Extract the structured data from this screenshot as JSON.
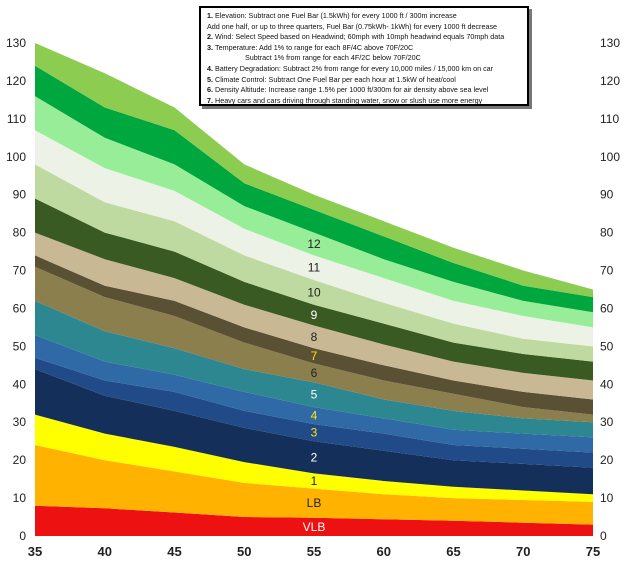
{
  "chart_data": {
    "type": "area",
    "title": "",
    "xlabel": "",
    "ylabel": "",
    "x": [
      35,
      40,
      45,
      50,
      55,
      60,
      65,
      70,
      75
    ],
    "xlim": [
      35,
      75
    ],
    "ylim": [
      0,
      130
    ],
    "x_ticks": [
      "35",
      "40",
      "45",
      "50",
      "55",
      "60",
      "65",
      "70",
      "75"
    ],
    "y_ticks": [
      "0",
      "10",
      "20",
      "30",
      "40",
      "50",
      "60",
      "70",
      "80",
      "90",
      "100",
      "110",
      "120",
      "130"
    ],
    "y_axis_both_sides": true,
    "bands": [
      {
        "name": "VLB",
        "color": "#ee1111",
        "label_color": "#ffffff",
        "upper": [
          8,
          7.3,
          6.2,
          5,
          4.8,
          4.4,
          4,
          3.5,
          3
        ]
      },
      {
        "name": "LB",
        "color": "#ffb300",
        "label_color": "#222222",
        "upper": [
          24,
          20,
          17,
          14,
          12.5,
          11,
          10,
          9.5,
          9
        ]
      },
      {
        "name": "1",
        "color": "#ffff00",
        "label_color": "#222222",
        "upper": [
          32,
          27,
          23.5,
          19.5,
          16.5,
          14.5,
          13,
          12,
          11
        ]
      },
      {
        "name": "2",
        "color": "#14305a",
        "label_color": "#ffffff",
        "upper": [
          44,
          37,
          33,
          28.5,
          25,
          22.5,
          20,
          19,
          18
        ]
      },
      {
        "name": "3",
        "color": "#204a88",
        "label_color": "#ffe800",
        "upper": [
          47,
          41,
          38,
          33,
          29.5,
          27,
          24,
          23,
          22
        ]
      },
      {
        "name": "4",
        "color": "#2f6aa6",
        "label_color": "#ffe800",
        "upper": [
          53,
          46,
          42.5,
          38,
          34,
          31,
          28,
          27,
          26
        ]
      },
      {
        "name": "5",
        "color": "#2c8790",
        "label_color": "#ffffff",
        "upper": [
          62,
          54,
          49.5,
          44,
          40.5,
          36,
          33,
          31,
          30
        ]
      },
      {
        "name": "6",
        "color": "#8b7f4e",
        "label_color": "#222222",
        "upper": [
          71,
          63,
          58,
          51,
          45.5,
          41,
          37.5,
          34,
          32
        ]
      },
      {
        "name": "7",
        "color": "#5a5034",
        "label_color": "#ffe800",
        "upper": [
          74,
          66,
          62,
          55,
          49.5,
          45,
          41,
          38,
          36
        ]
      },
      {
        "name": "8",
        "color": "#c8b894",
        "label_color": "#222222",
        "upper": [
          80,
          73,
          68,
          61,
          55.5,
          50.5,
          46,
          43,
          41
        ]
      },
      {
        "name": "9",
        "color": "#3a5a24",
        "label_color": "#ffffff",
        "upper": [
          89,
          80,
          75,
          67,
          61,
          56,
          51,
          48,
          46
        ]
      },
      {
        "name": "10",
        "color": "#bedaa0",
        "label_color": "#222222",
        "upper": [
          98,
          88,
          83,
          74,
          67.5,
          61.5,
          56,
          52,
          50
        ]
      },
      {
        "name": "11",
        "color": "#ecf3e6",
        "label_color": "#222222",
        "upper": [
          107,
          97,
          91,
          81,
          74,
          68,
          62,
          58,
          55
        ]
      },
      {
        "name": "12",
        "color": "#98ee98",
        "label_color": "#222222",
        "upper": [
          116,
          105,
          98,
          87,
          80,
          73,
          67,
          62,
          59
        ]
      },
      {
        "name": "",
        "color": "#00a63e",
        "label_color": "#222222",
        "upper": [
          124,
          113,
          107,
          93,
          86,
          79,
          72,
          66,
          63
        ]
      },
      {
        "name": "",
        "color": "#8ccc50",
        "label_color": "#222222",
        "upper": [
          130,
          122,
          113,
          98,
          90,
          83,
          76,
          70,
          65
        ]
      }
    ],
    "notes": [
      {
        "num": "1.",
        "text": "Elevation: Subtract one Fuel Bar (1.5kWh) for every 1000 ft / 300m increase"
      },
      {
        "num": "",
        "text": "Add one half, or up to three quarters, Fuel Bar (0.75kWh- 1kWh) for every 1000 ft decrease"
      },
      {
        "num": "2.",
        "text": "Wind: Select Speed based on Headwind;  60mph with 10mph headwind equals 70mph data"
      },
      {
        "num": "3.",
        "text": "Temperature: Add 1% to range for each 8F/4C above 70F/20C"
      },
      {
        "num": "",
        "text": "Subtract 1% from range for each 4F/2C below 70F/20C"
      },
      {
        "num": "4.",
        "text": "Battery Degradation: Subtract 2% from range for every 10,000 miles / 15,000 km on car"
      },
      {
        "num": "5.",
        "text": "Climate Control: Subtract One Fuel Bar per each hour at 1.5kW of heat/cool"
      },
      {
        "num": "6.",
        "text": "Density Altitude: Increase range 1.5% per 1000 ft/300m for air density above sea level"
      },
      {
        "num": "7.",
        "text": "Heavy cars and cars driving through standing water, snow or slush use more energy"
      }
    ]
  }
}
